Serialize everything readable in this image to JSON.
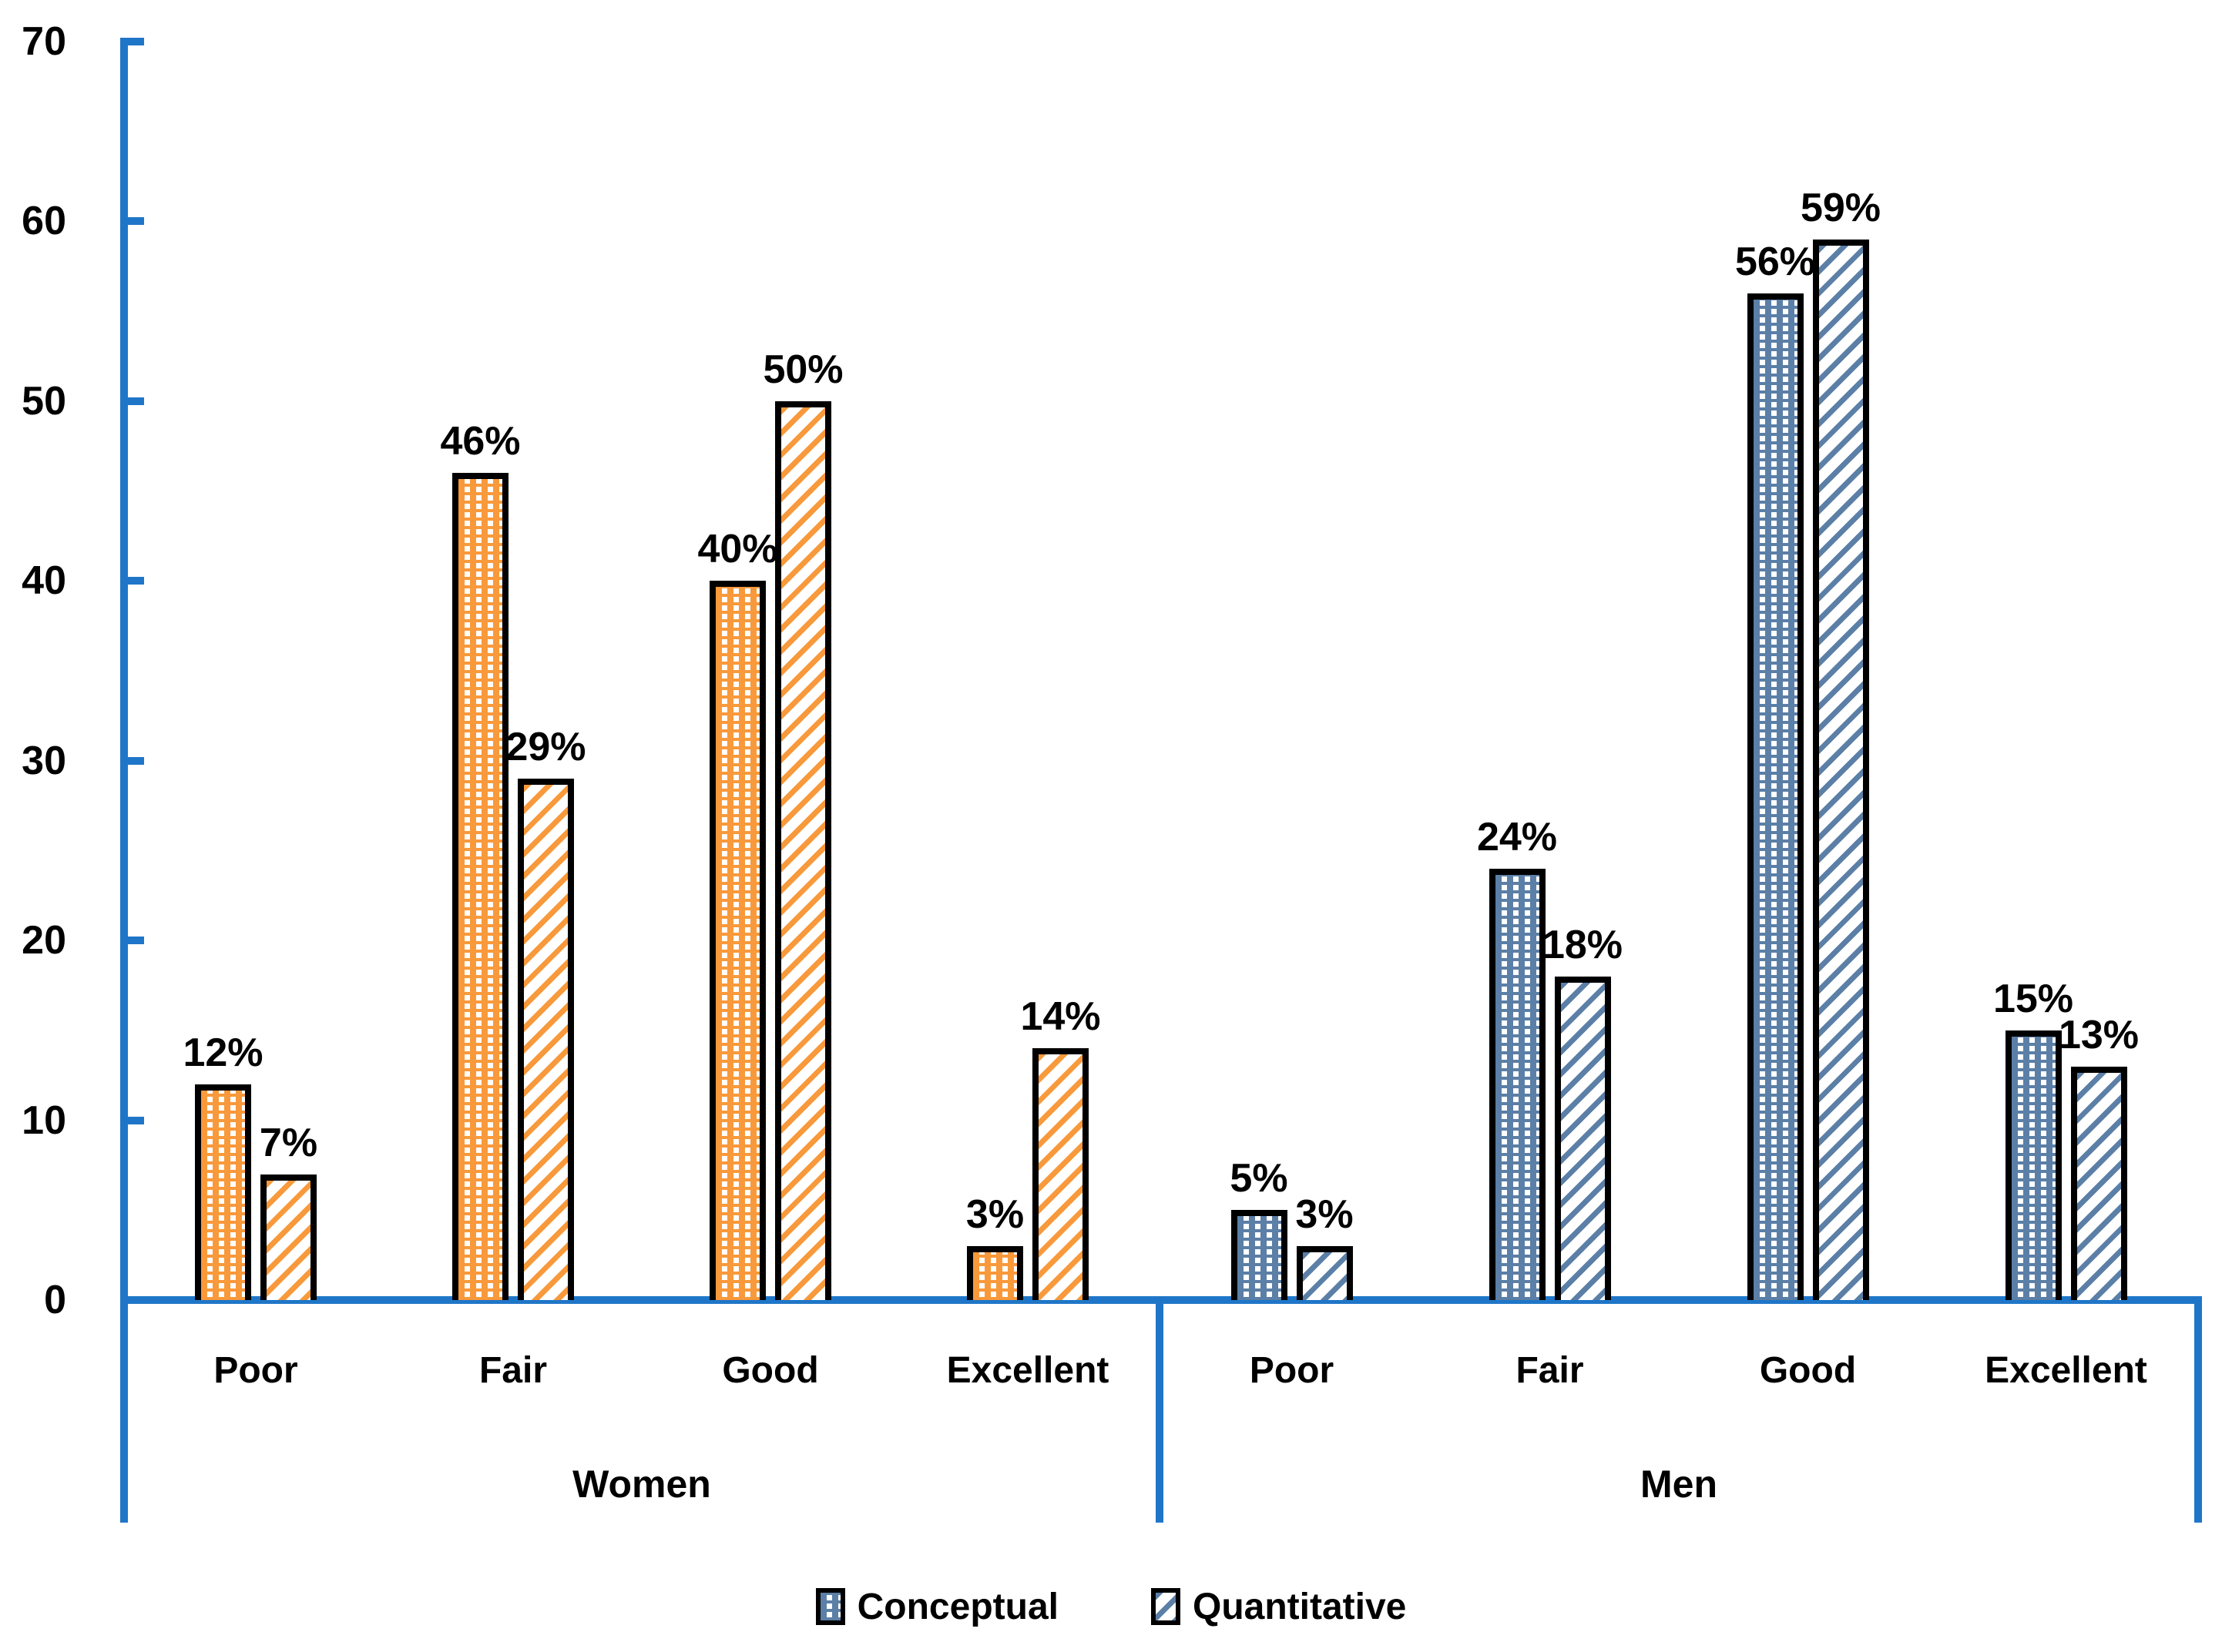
{
  "chart_data": {
    "type": "bar",
    "title": "",
    "ylim": [
      0,
      70
    ],
    "yticks": [
      0,
      10,
      20,
      30,
      40,
      50,
      60,
      70
    ],
    "grid": false,
    "legend_position": "bottom",
    "value_suffix": "%",
    "axis_color": "#1F76C8",
    "bar_border_color": "#000000",
    "text_color": "#000000",
    "series": [
      {
        "name": "Conceptual",
        "pattern": "dotted"
      },
      {
        "name": "Quantitative",
        "pattern": "diagonal"
      }
    ],
    "categories": [
      "Poor",
      "Fair",
      "Good",
      "Excellent"
    ],
    "groups": [
      {
        "label": "Women",
        "palette": "orange",
        "fill": "#F8993B",
        "values": [
          [
            12,
            7
          ],
          [
            46,
            29
          ],
          [
            40,
            50
          ],
          [
            3,
            14
          ]
        ]
      },
      {
        "label": "Men",
        "palette": "blue",
        "fill": "#5B7FA6",
        "values": [
          [
            5,
            3
          ],
          [
            24,
            18
          ],
          [
            56,
            59
          ],
          [
            15,
            13
          ]
        ]
      }
    ],
    "data_labels": {
      "Women": {
        "Conceptual": [
          "12%",
          "46%",
          "40%",
          "3%"
        ],
        "Quantitative": [
          "7%",
          "29%",
          "50%",
          "14%"
        ]
      },
      "Men": {
        "Conceptual": [
          "5%",
          "24%",
          "56%",
          "15%"
        ],
        "Quantitative": [
          "3%",
          "18%",
          "59%",
          "13%"
        ]
      }
    }
  }
}
